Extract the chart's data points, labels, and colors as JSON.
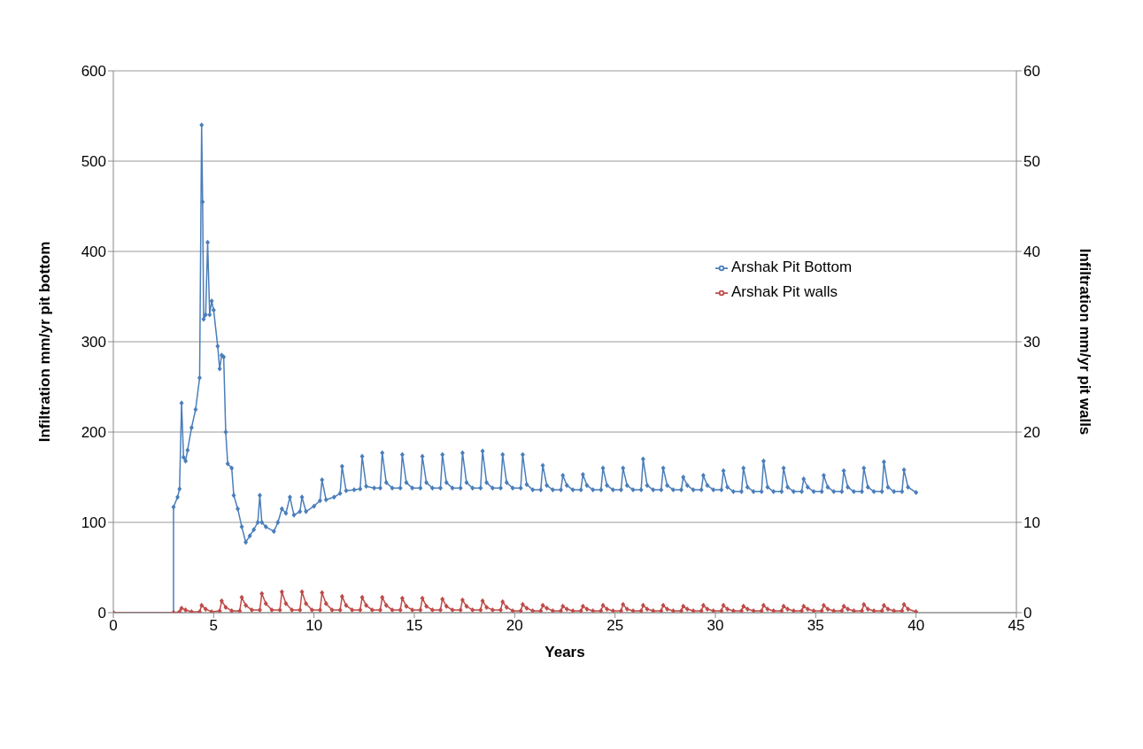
{
  "chart_data": {
    "type": "line",
    "xlabel": "Years",
    "ylabel": "Infiltration mm/yr pit bottom",
    "y2label": "Infiltration mm/yr pit walls",
    "xlim": [
      0,
      45
    ],
    "xticks": [
      0,
      5,
      10,
      15,
      20,
      25,
      30,
      35,
      40,
      45
    ],
    "ylim": [
      0,
      600
    ],
    "yticks": [
      0,
      100,
      200,
      300,
      400,
      500,
      600
    ],
    "y2lim": [
      0,
      60
    ],
    "y2ticks": [
      0,
      10,
      20,
      30,
      40,
      50,
      60
    ],
    "grid": "y",
    "legend": "right",
    "marker": "diamond",
    "line_style": "solid",
    "series": [
      {
        "name": "Arshak Pit Bottom",
        "color": "#4a7ebb",
        "x": [
          0,
          3,
          3,
          3.2,
          3.3,
          3.4,
          3.5,
          3.6,
          3.7,
          3.9,
          4.1,
          4.3,
          4.4,
          4.45,
          4.5,
          4.6,
          4.7,
          4.8,
          4.9,
          5.0,
          5.2,
          5.3,
          5.4,
          5.5,
          5.6,
          5.7,
          5.9,
          6.0,
          6.2,
          6.4,
          6.6,
          6.8,
          7.0,
          7.2,
          7.3,
          7.4,
          7.6,
          8.0,
          8.2,
          8.4,
          8.6,
          8.8,
          9.0,
          9.3,
          9.4,
          9.6,
          10.0,
          10.3,
          10.4,
          10.6,
          11.0,
          11.3,
          11.4,
          11.6,
          12.0,
          12.3,
          12.4,
          12.6,
          13.0,
          13.3,
          13.4,
          13.6,
          13.9,
          14.3,
          14.4,
          14.6,
          14.9,
          15.3,
          15.4,
          15.6,
          15.9,
          16.3,
          16.4,
          16.6,
          16.9,
          17.3,
          17.4,
          17.6,
          17.9,
          18.3,
          18.4,
          18.6,
          18.9,
          19.3,
          19.4,
          19.6,
          19.9,
          20.3,
          20.4,
          20.6,
          20.9,
          21.3,
          21.4,
          21.6,
          21.9,
          22.3,
          22.4,
          22.6,
          22.9,
          23.3,
          23.4,
          23.6,
          23.9,
          24.3,
          24.4,
          24.6,
          24.9,
          25.3,
          25.4,
          25.6,
          25.9,
          26.3,
          26.4,
          26.6,
          26.9,
          27.3,
          27.4,
          27.6,
          27.9,
          28.3,
          28.4,
          28.6,
          28.9,
          29.3,
          29.4,
          29.6,
          29.9,
          30.3,
          30.4,
          30.6,
          30.9,
          31.3,
          31.4,
          31.6,
          31.9,
          32.3,
          32.4,
          32.6,
          32.9,
          33.3,
          33.4,
          33.6,
          33.9,
          34.3,
          34.4,
          34.6,
          34.9,
          35.3,
          35.4,
          35.6,
          35.9,
          36.3,
          36.4,
          36.6,
          36.9,
          37.3,
          37.4,
          37.6,
          37.9,
          38.3,
          38.4,
          38.6,
          38.9,
          39.3,
          39.4,
          39.6,
          40
        ],
        "values": [
          0,
          0,
          117,
          128,
          137,
          232,
          172,
          168,
          180,
          205,
          225,
          260,
          540,
          455,
          325,
          330,
          410,
          330,
          345,
          335,
          295,
          270,
          285,
          283,
          200,
          165,
          160,
          130,
          115,
          95,
          78,
          85,
          92,
          100,
          130,
          100,
          95,
          90,
          100,
          115,
          110,
          128,
          108,
          112,
          128,
          112,
          118,
          124,
          147,
          125,
          128,
          132,
          162,
          135,
          136,
          137,
          173,
          140,
          138,
          138,
          177,
          144,
          138,
          138,
          175,
          144,
          138,
          138,
          173,
          144,
          138,
          138,
          175,
          144,
          138,
          138,
          177,
          144,
          138,
          138,
          179,
          144,
          138,
          138,
          175,
          144,
          138,
          138,
          175,
          142,
          136,
          136,
          163,
          141,
          136,
          136,
          152,
          141,
          136,
          136,
          153,
          141,
          136,
          136,
          160,
          141,
          136,
          136,
          160,
          141,
          136,
          136,
          170,
          141,
          136,
          136,
          160,
          141,
          136,
          136,
          150,
          141,
          136,
          136,
          152,
          141,
          136,
          136,
          157,
          139,
          134,
          134,
          160,
          139,
          134,
          134,
          168,
          139,
          134,
          134,
          160,
          139,
          134,
          134,
          148,
          139,
          134,
          134,
          152,
          139,
          134,
          134,
          157,
          139,
          134,
          134,
          160,
          139,
          134,
          134,
          167,
          139,
          134,
          134,
          158,
          139,
          133
        ]
      },
      {
        "name": "Arshak Pit walls",
        "color": "#be4b48",
        "axis": "y2",
        "x": [
          0,
          3,
          3.3,
          3.4,
          3.6,
          3.9,
          4.3,
          4.4,
          4.6,
          4.9,
          5.3,
          5.4,
          5.6,
          5.9,
          6.3,
          6.4,
          6.6,
          6.9,
          7.3,
          7.4,
          7.6,
          7.9,
          8.3,
          8.4,
          8.6,
          8.9,
          9.3,
          9.4,
          9.6,
          9.9,
          10.3,
          10.4,
          10.6,
          10.9,
          11.3,
          11.4,
          11.6,
          11.9,
          12.3,
          12.4,
          12.6,
          12.9,
          13.3,
          13.4,
          13.6,
          13.9,
          14.3,
          14.4,
          14.6,
          14.9,
          15.3,
          15.4,
          15.6,
          15.9,
          16.3,
          16.4,
          16.6,
          16.9,
          17.3,
          17.4,
          17.6,
          17.9,
          18.3,
          18.4,
          18.6,
          18.9,
          19.3,
          19.4,
          19.6,
          19.9,
          20.3,
          20.4,
          20.6,
          20.9,
          21.3,
          21.4,
          21.6,
          21.9,
          22.3,
          22.4,
          22.6,
          22.9,
          23.3,
          23.4,
          23.6,
          23.9,
          24.3,
          24.4,
          24.6,
          24.9,
          25.3,
          25.4,
          25.6,
          25.9,
          26.3,
          26.4,
          26.6,
          26.9,
          27.3,
          27.4,
          27.6,
          27.9,
          28.3,
          28.4,
          28.6,
          28.9,
          29.3,
          29.4,
          29.6,
          29.9,
          30.3,
          30.4,
          30.6,
          30.9,
          31.3,
          31.4,
          31.6,
          31.9,
          32.3,
          32.4,
          32.6,
          32.9,
          33.3,
          33.4,
          33.6,
          33.9,
          34.3,
          34.4,
          34.6,
          34.9,
          35.3,
          35.4,
          35.6,
          35.9,
          36.3,
          36.4,
          36.6,
          36.9,
          37.3,
          37.4,
          37.6,
          37.9,
          38.3,
          38.4,
          38.6,
          38.9,
          39.3,
          39.4,
          39.6,
          40
        ],
        "values": [
          0,
          0,
          0.1,
          0.5,
          0.3,
          0.1,
          0.1,
          0.8,
          0.4,
          0.1,
          0.2,
          1.3,
          0.6,
          0.2,
          0.2,
          1.7,
          0.8,
          0.3,
          0.3,
          2.1,
          1.0,
          0.3,
          0.3,
          2.3,
          1.0,
          0.3,
          0.3,
          2.3,
          1.0,
          0.3,
          0.3,
          2.2,
          1.0,
          0.3,
          0.3,
          1.8,
          0.8,
          0.3,
          0.3,
          1.7,
          0.8,
          0.3,
          0.3,
          1.7,
          0.8,
          0.3,
          0.3,
          1.6,
          0.7,
          0.3,
          0.3,
          1.6,
          0.7,
          0.3,
          0.3,
          1.5,
          0.7,
          0.3,
          0.3,
          1.4,
          0.7,
          0.3,
          0.3,
          1.3,
          0.6,
          0.3,
          0.3,
          1.2,
          0.6,
          0.2,
          0.2,
          0.9,
          0.5,
          0.2,
          0.2,
          0.8,
          0.5,
          0.2,
          0.2,
          0.7,
          0.4,
          0.2,
          0.2,
          0.7,
          0.4,
          0.2,
          0.2,
          0.8,
          0.4,
          0.2,
          0.2,
          0.9,
          0.4,
          0.2,
          0.2,
          0.8,
          0.4,
          0.2,
          0.2,
          0.8,
          0.4,
          0.2,
          0.2,
          0.7,
          0.4,
          0.2,
          0.2,
          0.8,
          0.4,
          0.2,
          0.2,
          0.8,
          0.4,
          0.2,
          0.2,
          0.7,
          0.4,
          0.2,
          0.2,
          0.8,
          0.4,
          0.2,
          0.2,
          0.7,
          0.4,
          0.2,
          0.2,
          0.7,
          0.4,
          0.2,
          0.2,
          0.8,
          0.4,
          0.2,
          0.2,
          0.7,
          0.4,
          0.2,
          0.2,
          0.9,
          0.4,
          0.2,
          0.2,
          0.8,
          0.4,
          0.2,
          0.2,
          0.9,
          0.4,
          0.1
        ]
      }
    ]
  }
}
